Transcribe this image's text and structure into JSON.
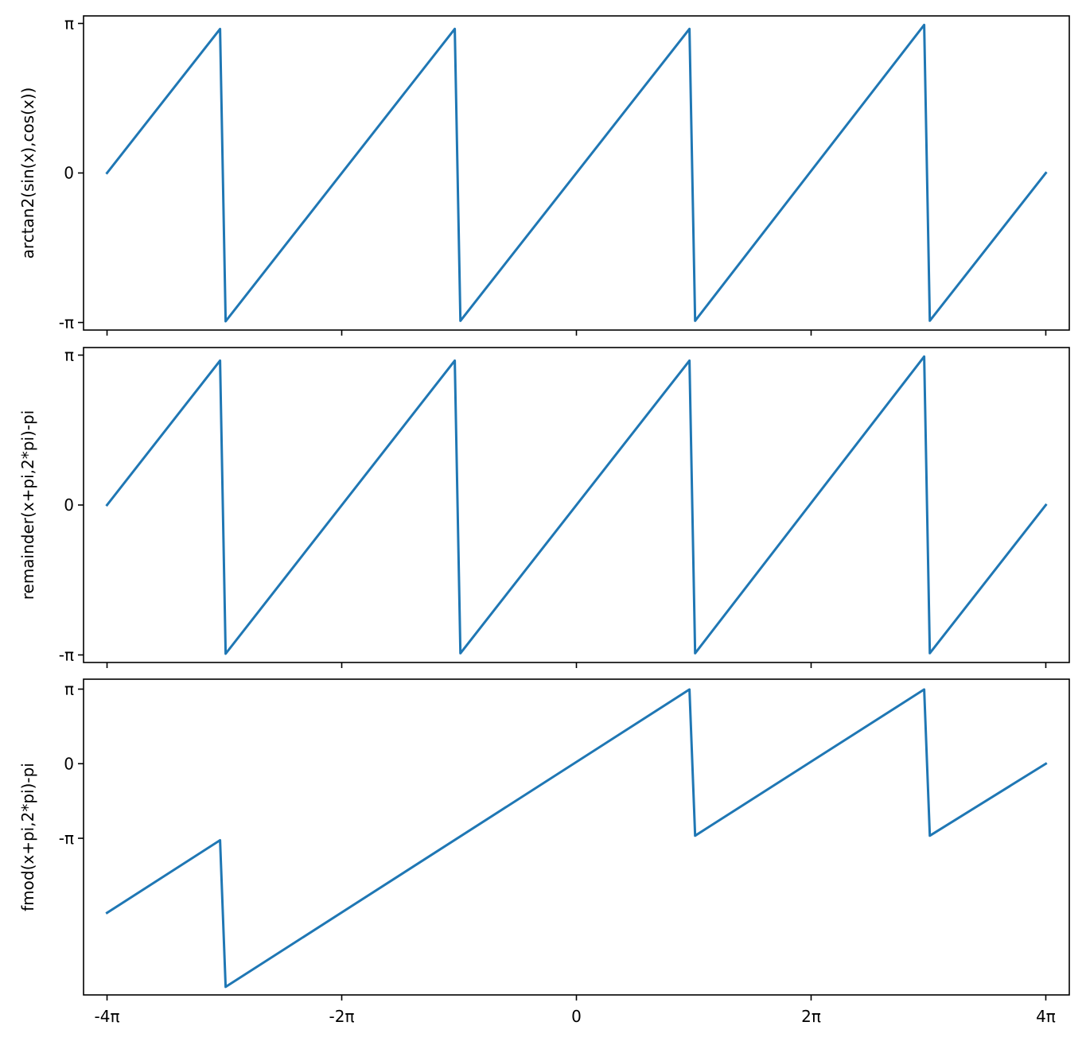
{
  "chart_data": [
    {
      "type": "line",
      "ylabel": "arctan2(sin(x),cos(x))",
      "xlim": [
        -13.195,
        13.195
      ],
      "ylim": [
        -3.3,
        3.3
      ],
      "x_ticks": [
        {
          "value": -12.566,
          "label": "-4π"
        },
        {
          "value": -6.283,
          "label": "-2π"
        },
        {
          "value": 0,
          "label": "0"
        },
        {
          "value": 6.283,
          "label": "2π"
        },
        {
          "value": 12.566,
          "label": "4π"
        }
      ],
      "x_tick_labels_shown": false,
      "y_ticks": [
        {
          "value": 3.1416,
          "label": "π"
        },
        {
          "value": 0,
          "label": "0"
        },
        {
          "value": -3.1416,
          "label": "-π"
        }
      ],
      "series": [
        {
          "color": "#1f77b4",
          "x": [
            -12.566,
            -9.54,
            -9.39,
            -3.256,
            -3.106,
            3.027,
            3.177,
            9.311,
            9.461,
            12.566
          ],
          "y": [
            0,
            3.026,
            -3.116,
            3.027,
            -3.106,
            3.027,
            -3.106,
            3.111,
            -3.105,
            0
          ]
        }
      ]
    },
    {
      "type": "line",
      "ylabel": "remainder(x+pi,2*pi)-pi",
      "xlim": [
        -13.195,
        13.195
      ],
      "ylim": [
        -3.3,
        3.3
      ],
      "x_ticks": [
        {
          "value": -12.566,
          "label": "-4π"
        },
        {
          "value": -6.283,
          "label": "-2π"
        },
        {
          "value": 0,
          "label": "0"
        },
        {
          "value": 6.283,
          "label": "2π"
        },
        {
          "value": 12.566,
          "label": "4π"
        }
      ],
      "x_tick_labels_shown": false,
      "y_ticks": [
        {
          "value": 3.1416,
          "label": "π"
        },
        {
          "value": 0,
          "label": "0"
        },
        {
          "value": -3.1416,
          "label": "-π"
        }
      ],
      "series": [
        {
          "color": "#1f77b4",
          "x": [
            -12.566,
            -9.54,
            -9.39,
            -3.256,
            -3.106,
            3.027,
            3.177,
            9.311,
            9.461,
            12.566
          ],
          "y": [
            0,
            3.026,
            -3.116,
            3.027,
            -3.106,
            3.027,
            -3.106,
            3.111,
            -3.105,
            0
          ]
        }
      ]
    },
    {
      "type": "line",
      "ylabel": "fmod(x+pi,2*pi)-pi",
      "xlim": [
        -13.195,
        13.195
      ],
      "ylim": [
        -9.74,
        3.56
      ],
      "x_ticks": [
        {
          "value": -12.566,
          "label": "-4π"
        },
        {
          "value": -6.283,
          "label": "-2π"
        },
        {
          "value": 0,
          "label": "0"
        },
        {
          "value": 6.283,
          "label": "2π"
        },
        {
          "value": 12.566,
          "label": "4π"
        }
      ],
      "x_tick_labels_shown": true,
      "y_ticks": [
        {
          "value": 3.1416,
          "label": "π"
        },
        {
          "value": 0,
          "label": "0"
        },
        {
          "value": -3.1416,
          "label": "-π"
        }
      ],
      "series": [
        {
          "color": "#1f77b4",
          "x": [
            -12.566,
            -9.54,
            -9.39,
            3.027,
            3.177,
            9.311,
            9.461,
            12.566
          ],
          "y": [
            -6.283,
            -3.223,
            -9.4,
            3.128,
            -3.033,
            3.128,
            -3.033,
            0
          ]
        }
      ]
    }
  ]
}
